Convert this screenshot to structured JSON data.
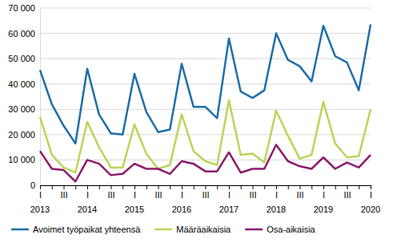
{
  "chart_data": {
    "type": "line",
    "categories": [
      "I",
      null,
      "III",
      null,
      "I",
      null,
      "III",
      null,
      "I",
      null,
      "III",
      null,
      "I",
      null,
      "III",
      null,
      "I",
      null,
      "III",
      null,
      "I",
      null,
      "III",
      null,
      "I",
      null,
      "III",
      null,
      "I"
    ],
    "year_labels": [
      "2013",
      "2014",
      "2015",
      "2016",
      "2017",
      "2018",
      "2019",
      "2020"
    ],
    "series": [
      {
        "name": "Avoimet työpaikat yhteensä",
        "color": "#1f6ea8",
        "values": [
          45500,
          32000,
          23500,
          16500,
          46000,
          28000,
          20500,
          20000,
          44000,
          29000,
          21000,
          22000,
          48000,
          31000,
          31000,
          26500,
          58000,
          37000,
          34500,
          37500,
          60000,
          49500,
          47000,
          41000,
          63000,
          51000,
          48500,
          37500,
          63500
        ]
      },
      {
        "name": "Määräaikaisia",
        "color": "#b9d65a",
        "values": [
          27000,
          12000,
          7000,
          5000,
          25000,
          15000,
          7000,
          7000,
          24000,
          12500,
          6500,
          8000,
          28000,
          13500,
          9500,
          8000,
          33500,
          12000,
          12500,
          9000,
          29500,
          19500,
          10500,
          12000,
          33000,
          16500,
          11000,
          11500,
          30000
        ]
      },
      {
        "name": "Osa-aikaisia",
        "color": "#8c1b6e",
        "values": [
          13500,
          6500,
          6000,
          1500,
          10000,
          8500,
          4000,
          4500,
          8500,
          6500,
          6500,
          4500,
          9500,
          8500,
          5500,
          5500,
          13000,
          5000,
          6500,
          6500,
          16000,
          9500,
          7500,
          6500,
          11000,
          6500,
          9000,
          7000,
          12000
        ]
      }
    ],
    "ylim": [
      0,
      70000
    ],
    "yticks": [
      0,
      {
        "value": 10000,
        "label": "10 000"
      },
      {
        "value": 20000,
        "label": "20 000"
      },
      {
        "value": 30000,
        "label": "30 000"
      },
      {
        "value": 40000,
        "label": "40 000"
      },
      {
        "value": 50000,
        "label": "50 000"
      },
      {
        "value": 60000,
        "label": "60 000"
      },
      {
        "value": 70000,
        "label": "70 000"
      }
    ],
    "grid": true,
    "legend": "bottom"
  }
}
